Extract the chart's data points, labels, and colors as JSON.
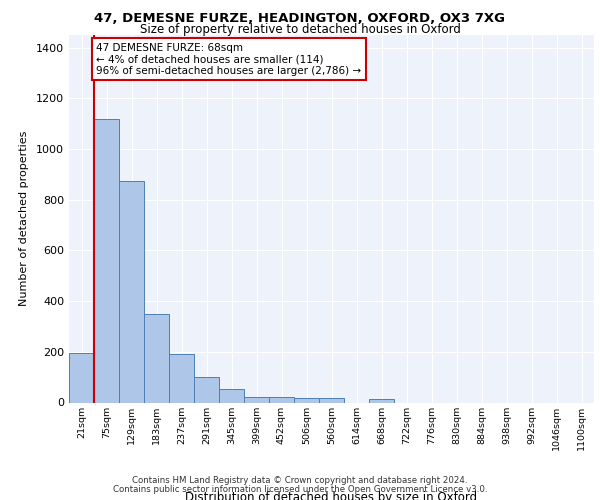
{
  "title_line1": "47, DEMESNE FURZE, HEADINGTON, OXFORD, OX3 7XG",
  "title_line2": "Size of property relative to detached houses in Oxford",
  "xlabel": "Distribution of detached houses by size in Oxford",
  "ylabel": "Number of detached properties",
  "bar_labels": [
    "21sqm",
    "75sqm",
    "129sqm",
    "183sqm",
    "237sqm",
    "291sqm",
    "345sqm",
    "399sqm",
    "452sqm",
    "506sqm",
    "560sqm",
    "614sqm",
    "668sqm",
    "722sqm",
    "776sqm",
    "830sqm",
    "884sqm",
    "938sqm",
    "992sqm",
    "1046sqm",
    "1100sqm"
  ],
  "bar_values": [
    197,
    1120,
    875,
    350,
    190,
    100,
    53,
    23,
    23,
    18,
    18,
    0,
    12,
    0,
    0,
    0,
    0,
    0,
    0,
    0,
    0
  ],
  "bar_color": "#aec6e8",
  "bar_edge_color": "#4d7fb5",
  "background_color": "#eef2fb",
  "grid_color": "#ffffff",
  "vline_color": "#cc0000",
  "annotation_text": "47 DEMESNE FURZE: 68sqm\n← 4% of detached houses are smaller (114)\n96% of semi-detached houses are larger (2,786) →",
  "annotation_box_color": "#ffffff",
  "annotation_box_edge": "#cc0000",
  "footer_line1": "Contains HM Land Registry data © Crown copyright and database right 2024.",
  "footer_line2": "Contains public sector information licensed under the Open Government Licence v3.0.",
  "ylim": [
    0,
    1450
  ],
  "yticks": [
    0,
    200,
    400,
    600,
    800,
    1000,
    1200,
    1400
  ]
}
